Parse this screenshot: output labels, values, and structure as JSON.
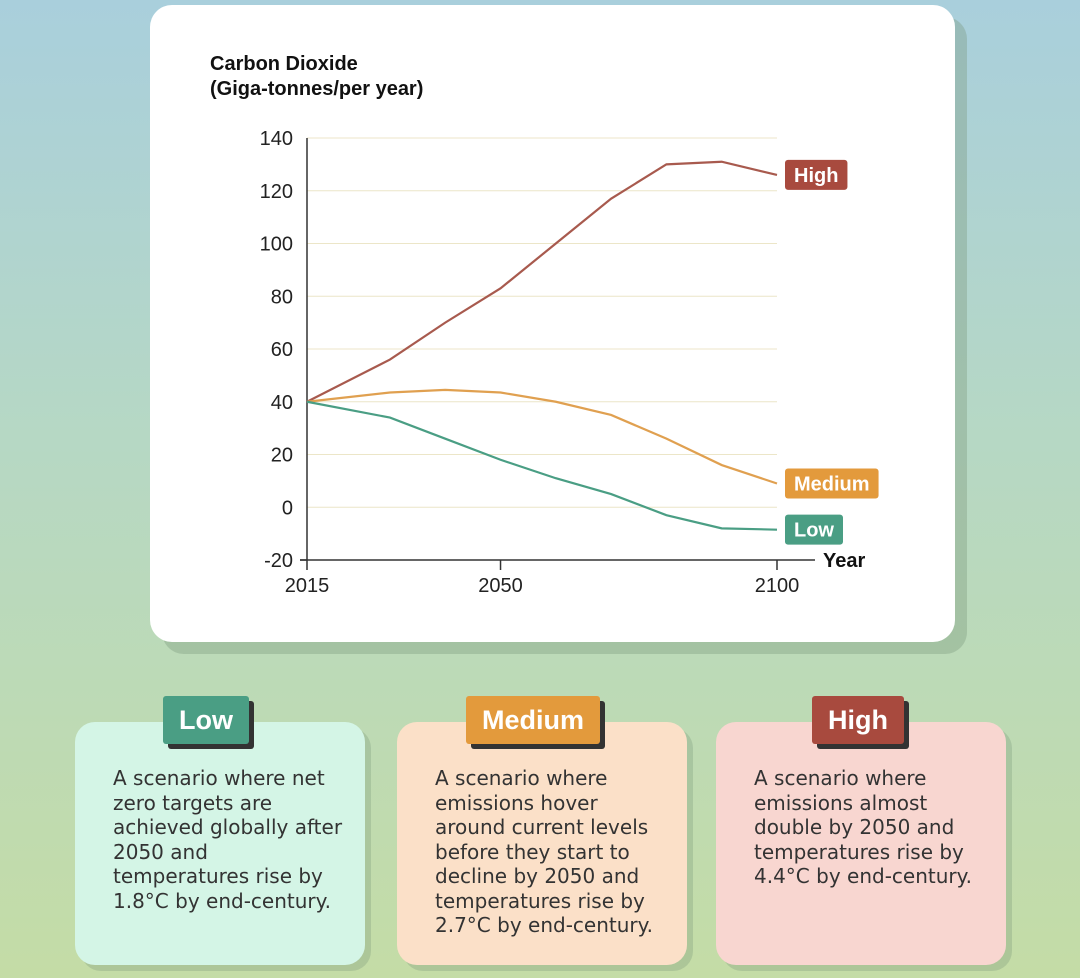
{
  "chart_data": {
    "type": "line",
    "title": "Carbon Dioxide",
    "subtitle": "(Giga-tonnes/per year)",
    "xlabel": "Year",
    "x": [
      2015,
      2030,
      2040,
      2050,
      2060,
      2070,
      2080,
      2090,
      2100
    ],
    "series": [
      {
        "name": "High",
        "color": "#a85a4e",
        "label_color": "#a84a3e",
        "values": [
          40,
          56,
          70,
          83,
          100,
          117,
          130,
          131,
          126
        ]
      },
      {
        "name": "Medium",
        "color": "#e0a050",
        "label_color": "#e39a3c",
        "values": [
          40,
          43.5,
          44.5,
          43.5,
          40,
          35,
          26,
          16,
          9
        ]
      },
      {
        "name": "Low",
        "color": "#4a9e84",
        "label_color": "#4a9e84",
        "values": [
          40,
          34,
          26,
          18,
          11,
          5,
          -3,
          -8,
          -8.5
        ]
      }
    ],
    "xlim": [
      2015,
      2100
    ],
    "xticks": [
      2015,
      2050,
      2100
    ],
    "ylim": [
      -20,
      140
    ],
    "yticks": [
      -20,
      0,
      20,
      40,
      60,
      80,
      100,
      120,
      140
    ],
    "grid": true
  },
  "cards": [
    {
      "title": "Low",
      "text": "A scenario where net zero targets are achieved globally after 2050 and temperatures rise by 1.8°C by end-century."
    },
    {
      "title": "Medium",
      "text": "A scenario where emissions hover around current levels before they start to decline by 2050 and temperatures rise by 2.7°C by end-century."
    },
    {
      "title": "High",
      "text": "A scenario where emissions almost double by 2050 and temperatures rise by 4.4°C by end-century."
    }
  ]
}
